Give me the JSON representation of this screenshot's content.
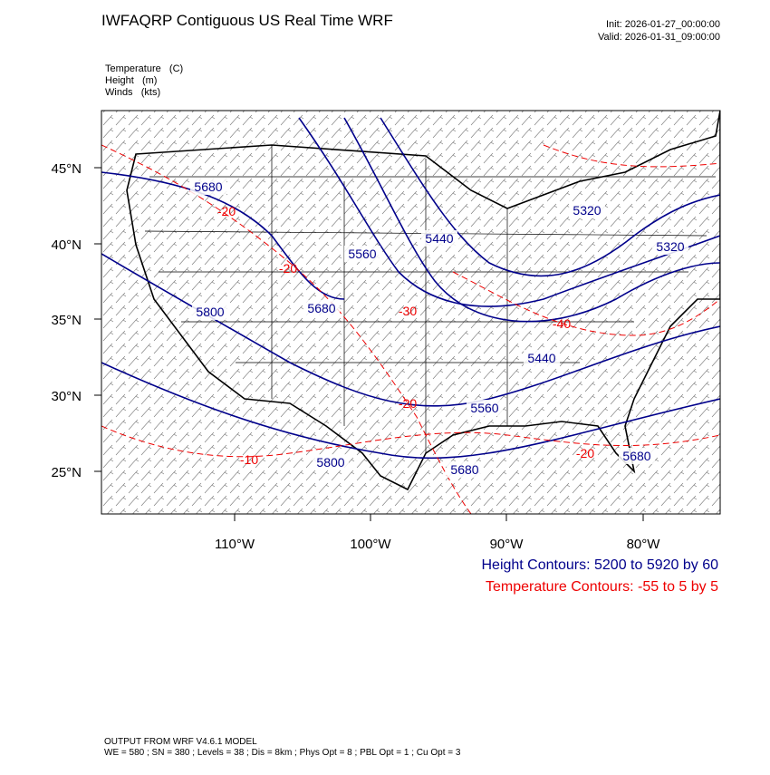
{
  "header": {
    "title": "IWFAQRP Contiguous US Real Time WRF",
    "init": "Init: 2026-01-27_00:00:00",
    "valid": "Valid: 2026-01-31_09:00:00"
  },
  "fields": [
    "Temperature   (C)",
    "Height   (m)",
    "Winds   (kts)"
  ],
  "map": {
    "lat_labels": [
      "45°N",
      "40°N",
      "35°N",
      "30°N",
      "25°N"
    ],
    "lon_labels": [
      "110°W",
      "100°W",
      "90°W",
      "80°W"
    ],
    "height_labels": [
      "5680",
      "5560",
      "5440",
      "5320",
      "5320",
      "5800",
      "5680",
      "5440",
      "5560",
      "5800",
      "5680",
      "5680"
    ],
    "temperature_labels": [
      "-20",
      "-20",
      "-30",
      "-40",
      "-20",
      "-10",
      "-20"
    ]
  },
  "legend": {
    "height": "Height Contours: 5200 to 5920 by 60",
    "temperature": "Temperature Contours: -55 to 5 by 5"
  },
  "footer": {
    "model": "OUTPUT FROM WRF V4.6.1 MODEL",
    "settings": "WE = 580 ; SN = 380 ; Levels = 38 ; Dis = 8km ; Phys Opt = 8 ; PBL Opt = 1 ; Cu Opt = 3"
  }
}
